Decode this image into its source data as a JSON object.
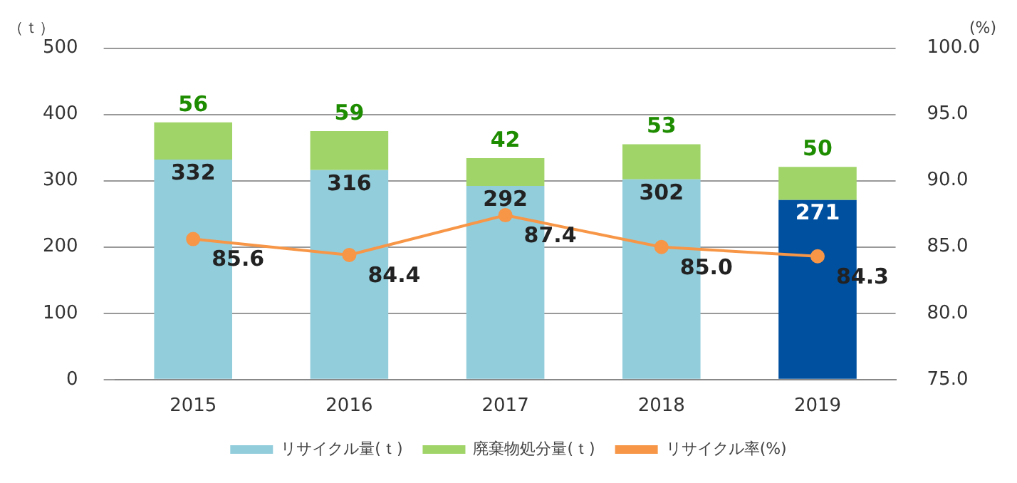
{
  "chart_data": {
    "type": "bar",
    "stacked": true,
    "categories": [
      "2015",
      "2016",
      "2017",
      "2018",
      "2019"
    ],
    "series": [
      {
        "name": "リサイクル量(ｔ)",
        "color": "#92cddc",
        "colors": [
          "#92cddc",
          "#92cddc",
          "#92cddc",
          "#92cddc",
          "#0050a0"
        ],
        "values": [
          332,
          316,
          292,
          302,
          271
        ]
      },
      {
        "name": "廃棄物処分量(ｔ)",
        "color": "#a0d468",
        "values": [
          56,
          59,
          42,
          53,
          50
        ]
      },
      {
        "name": "リサイクル率(%)",
        "type": "line",
        "axis": "y2",
        "color": "#f79646",
        "marker": "circle",
        "values": [
          85.6,
          84.4,
          87.4,
          85.0,
          84.3
        ],
        "value_labels": [
          "85.6",
          "84.4",
          "87.4",
          "85.0",
          "84.3"
        ]
      }
    ],
    "data_labels": true,
    "ylabel": "（ｔ）",
    "y2label": "(%)",
    "ylim": [
      0,
      500
    ],
    "yticks": [
      0,
      100,
      200,
      300,
      400,
      500
    ],
    "y2lim": [
      75,
      100
    ],
    "y2ticks": [
      {
        "value": 75,
        "label": "75.0"
      },
      {
        "value": 80,
        "label": "80.0"
      },
      {
        "value": 85,
        "label": "85.0"
      },
      {
        "value": 90,
        "label": "90.0"
      },
      {
        "value": 95,
        "label": "95.0"
      },
      {
        "value": 100,
        "label": "100.0"
      }
    ],
    "grid": "y",
    "legend": "bottom"
  }
}
